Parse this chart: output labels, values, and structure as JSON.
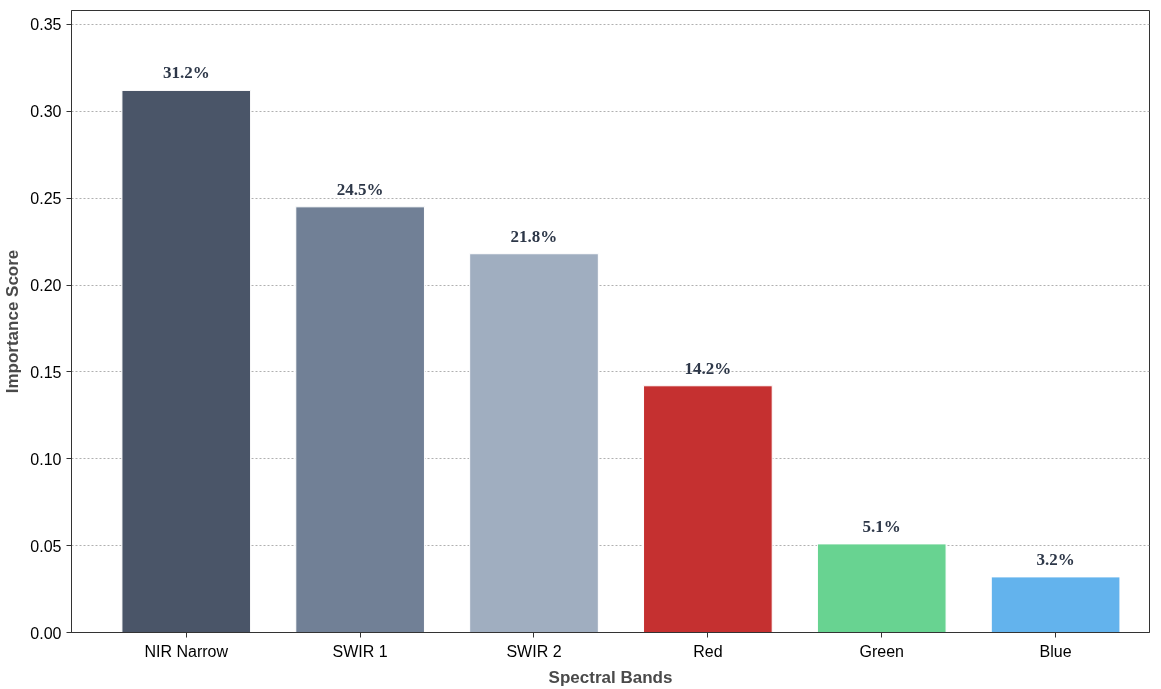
{
  "chart_data": {
    "type": "bar",
    "xlabel": "Spectral Bands",
    "ylabel": "Importance Score",
    "categories": [
      "NIR Narrow",
      "SWIR 1",
      "SWIR 2",
      "Red",
      "Green",
      "Blue"
    ],
    "values": [
      0.312,
      0.245,
      0.218,
      0.142,
      0.051,
      0.032
    ],
    "colors": [
      "#4a5568",
      "#718096",
      "#a0aec0",
      "#c53030",
      "#68d391",
      "#63b3ed"
    ],
    "value_labels": [
      "31.2%",
      "24.5%",
      "21.8%",
      "14.2%",
      "5.1%",
      "3.2%"
    ],
    "ylim": [
      0,
      0.358
    ],
    "yticks": [
      {
        "value": 0,
        "label": "0.00"
      },
      {
        "value": 0.05,
        "label": "0.05"
      },
      {
        "value": 0.1,
        "label": "0.10"
      },
      {
        "value": 0.15,
        "label": "0.15"
      },
      {
        "value": 0.2,
        "label": "0.20"
      },
      {
        "value": 0.25,
        "label": "0.25"
      },
      {
        "value": 0.3,
        "label": "0.30"
      },
      {
        "value": 0.35,
        "label": "0.35"
      }
    ],
    "grid": "y"
  }
}
